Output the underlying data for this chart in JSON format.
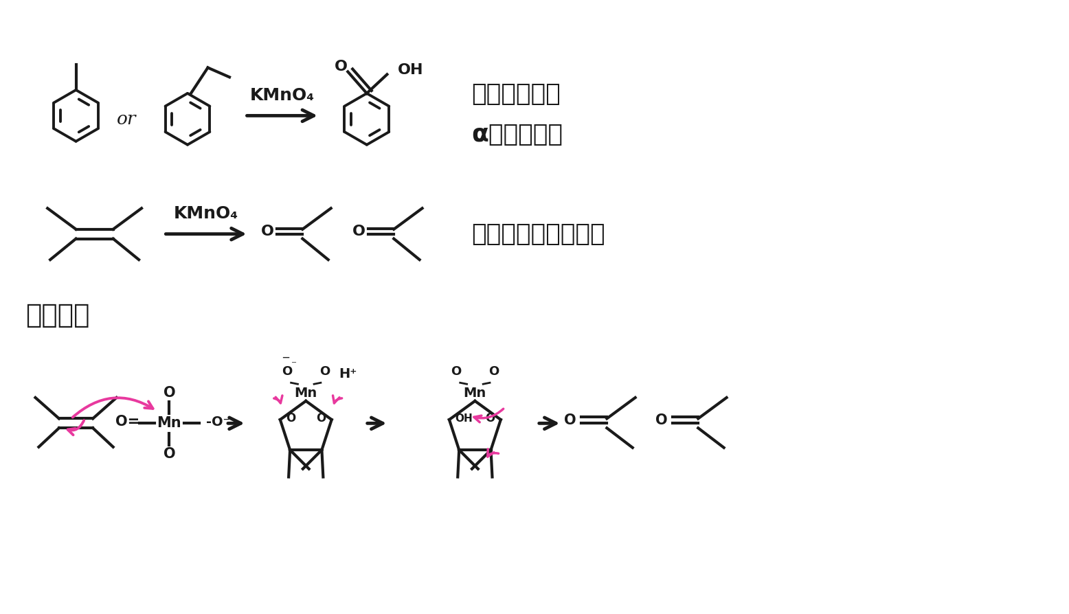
{
  "bg_color": "#ffffff",
  "line_color": "#1a1a1a",
  "pink_color": "#e8399e",
  "title_row1_text": "ベンゼン環の",
  "title_row2_text": "α位で切れる",
  "title2_text": "二重結合は開裂する",
  "section3_text": "反応機構",
  "kmno4_text": "KMnO₄",
  "reagent_fontsize": 18,
  "title_fontsize": 26,
  "section_fontsize": 28
}
